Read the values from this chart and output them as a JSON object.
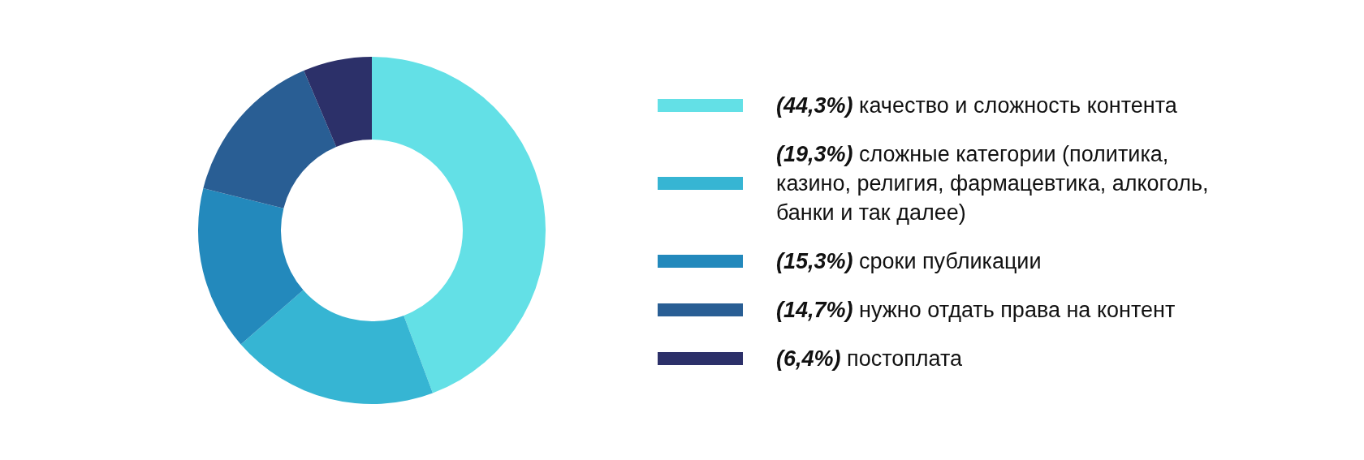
{
  "chart_data": {
    "type": "donut",
    "categories": [
      "(44,3%) качество и сложность контента",
      "(19,3%) сложные категории (политика, казино, религия, фармацевтика, алкоголь, банки и так далее)",
      "(15,3%) сроки публикации",
      "(14,7%) нужно отдать права на контент",
      "(6,4%) постоплата"
    ],
    "values": [
      44.3,
      19.3,
      15.3,
      14.7,
      6.4
    ],
    "colors": [
      "#63e0e6",
      "#36b5d3",
      "#2389bc",
      "#295e94",
      "#2c3069"
    ],
    "legend": "right"
  }
}
